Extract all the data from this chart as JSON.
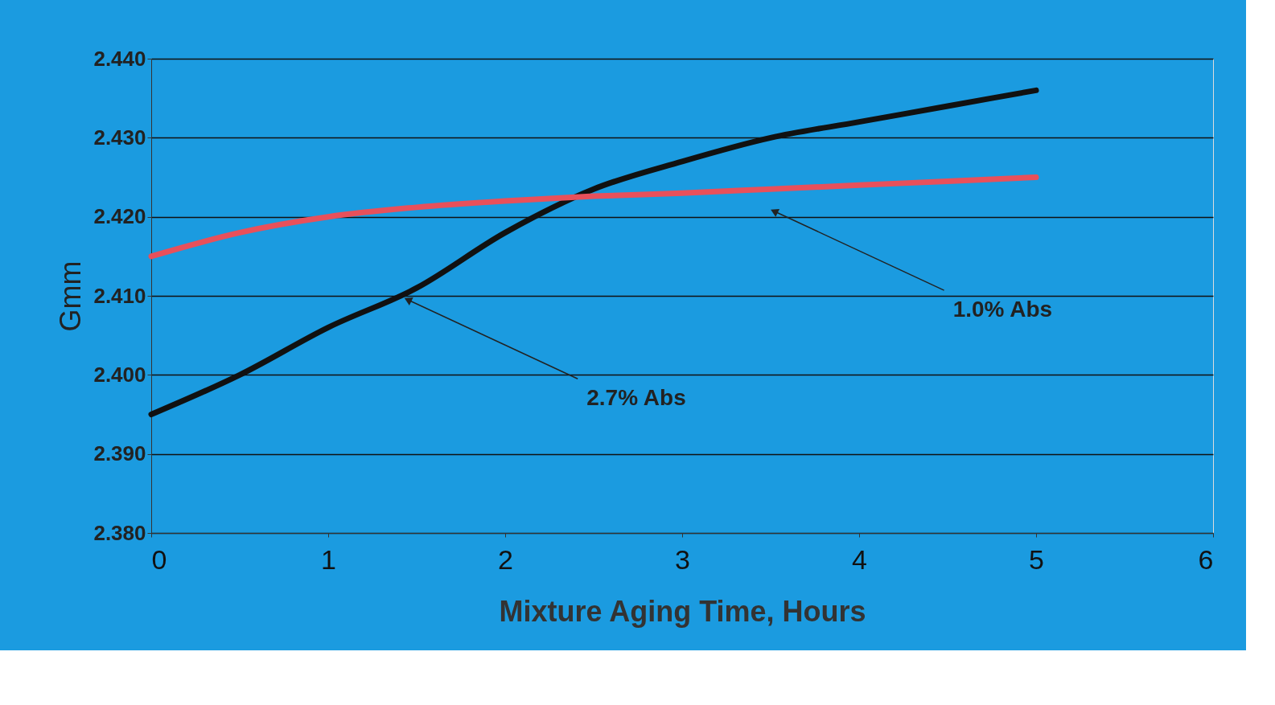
{
  "chart_data": {
    "type": "line",
    "xlabel": "Mixture Aging Time, Hours",
    "ylabel": "Gmm",
    "x": [
      0,
      0.5,
      1,
      1.5,
      2,
      2.5,
      3,
      3.5,
      4,
      4.5,
      5
    ],
    "series": [
      {
        "color": "#111111",
        "values": [
          2.395,
          2.4,
          2.406,
          2.411,
          2.418,
          2.4235,
          2.427,
          2.43,
          2.432,
          2.434,
          2.436
        ]
      },
      {
        "color": "#e8505b",
        "values": [
          2.415,
          2.418,
          2.42,
          2.4212,
          2.422,
          2.4226,
          2.423,
          2.4235,
          2.424,
          2.4245,
          2.425
        ]
      }
    ],
    "xlim": [
      0,
      6
    ],
    "xticks": [
      0,
      1,
      2,
      3,
      4,
      5,
      6
    ],
    "ylim": [
      2.38,
      2.44
    ],
    "yticks": [
      {
        "value": 2.38,
        "label": "2.380"
      },
      {
        "value": 2.39,
        "label": "2.390"
      },
      {
        "value": 2.4,
        "label": "2.400"
      },
      {
        "value": 2.41,
        "label": "2.410"
      },
      {
        "value": 2.42,
        "label": "2.420"
      },
      {
        "value": 2.43,
        "label": "2.430"
      },
      {
        "value": 2.44,
        "label": "2.440"
      }
    ],
    "annotations": [
      {
        "text": "2.7% Abs",
        "x": 1.45,
        "y": 2.4095
      },
      {
        "text": "1.0% Abs",
        "x": 3.52,
        "y": 2.4207
      }
    ],
    "grid": "y",
    "marker": "none",
    "line_style": "solid"
  }
}
